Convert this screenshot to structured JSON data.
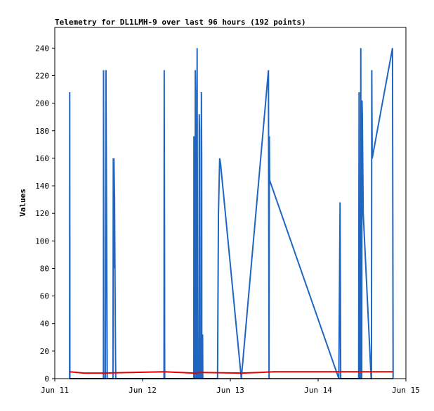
{
  "chart_data": {
    "type": "line",
    "title": "Telemetry for DL1LMH-9 over last 96 hours (192 points)",
    "xlabel": "",
    "ylabel": "Values",
    "ylim": [
      0,
      255
    ],
    "xlim": [
      "2024-06-11T00:00",
      "2024-06-15T00:00"
    ],
    "y_ticks": [
      0,
      20,
      40,
      60,
      80,
      100,
      120,
      140,
      160,
      180,
      200,
      220,
      240
    ],
    "x_ticks": [
      {
        "t": "2024-06-11T00:00",
        "label": "Jun 11"
      },
      {
        "t": "2024-06-12T00:00",
        "label": "Jun 12"
      },
      {
        "t": "2024-06-13T00:00",
        "label": "Jun 13"
      },
      {
        "t": "2024-06-14T00:00",
        "label": "Jun 14"
      },
      {
        "t": "2024-06-15T00:00",
        "label": "Jun 15"
      }
    ],
    "grid": false,
    "colors": {
      "blue": "#1f66c0",
      "red": "#e60000",
      "black": "#000000"
    },
    "series": [
      {
        "color": "#1f66c0",
        "points": [
          [
            "2024-06-11T04:03",
            0
          ],
          [
            "2024-06-11T04:05",
            208
          ],
          [
            "2024-06-11T04:08",
            0
          ],
          [
            "2024-06-11T13:18",
            0
          ],
          [
            "2024-06-11T13:20",
            224
          ],
          [
            "2024-06-11T13:23",
            0
          ],
          [
            "2024-06-11T13:50",
            0
          ],
          [
            "2024-06-11T13:52",
            96
          ],
          [
            "2024-06-11T14:00",
            224
          ],
          [
            "2024-06-11T14:05",
            168
          ],
          [
            "2024-06-11T14:15",
            56
          ],
          [
            "2024-06-11T14:20",
            0
          ],
          [
            "2024-06-11T15:55",
            0
          ],
          [
            "2024-06-11T16:00",
            160
          ],
          [
            "2024-06-11T16:05",
            80
          ],
          [
            "2024-06-11T16:10",
            160
          ],
          [
            "2024-06-11T16:20",
            132
          ],
          [
            "2024-06-11T16:35",
            24
          ],
          [
            "2024-06-11T16:40",
            0
          ],
          [
            "2024-06-12T05:52",
            0
          ],
          [
            "2024-06-12T05:55",
            224
          ],
          [
            "2024-06-12T06:00",
            112
          ],
          [
            "2024-06-12T06:03",
            0
          ],
          [
            "2024-06-12T14:00",
            0
          ],
          [
            "2024-06-12T14:03",
            176
          ],
          [
            "2024-06-12T14:06",
            128
          ],
          [
            "2024-06-12T14:10",
            176
          ],
          [
            "2024-06-12T14:15",
            0
          ],
          [
            "2024-06-12T14:22",
            0
          ],
          [
            "2024-06-12T14:25",
            224
          ],
          [
            "2024-06-12T14:30",
            208
          ],
          [
            "2024-06-12T14:35",
            0
          ],
          [
            "2024-06-12T14:50",
            0
          ],
          [
            "2024-06-12T14:55",
            240
          ],
          [
            "2024-06-12T15:00",
            72
          ],
          [
            "2024-06-12T15:03",
            0
          ],
          [
            "2024-06-12T15:25",
            0
          ],
          [
            "2024-06-12T15:30",
            192
          ],
          [
            "2024-06-12T15:35",
            180
          ],
          [
            "2024-06-12T15:38",
            0
          ],
          [
            "2024-06-12T16:00",
            0
          ],
          [
            "2024-06-12T16:05",
            208
          ],
          [
            "2024-06-12T16:10",
            160
          ],
          [
            "2024-06-12T16:12",
            0
          ],
          [
            "2024-06-12T16:20",
            0
          ],
          [
            "2024-06-12T16:25",
            32
          ],
          [
            "2024-06-12T16:28",
            0
          ],
          [
            "2024-06-12T20:30",
            0
          ],
          [
            "2024-06-12T20:35",
            40
          ],
          [
            "2024-06-12T20:45",
            120
          ],
          [
            "2024-06-12T21:05",
            160
          ],
          [
            "2024-06-12T21:20",
            156
          ],
          [
            "2024-06-13T03:00",
            0
          ],
          [
            "2024-06-13T10:25",
            224
          ],
          [
            "2024-06-13T10:35",
            0
          ],
          [
            "2024-06-13T10:40",
            176
          ],
          [
            "2024-06-13T10:45",
            144
          ],
          [
            "2024-06-14T05:40",
            0
          ],
          [
            "2024-06-14T06:00",
            128
          ],
          [
            "2024-06-14T06:05",
            72
          ],
          [
            "2024-06-14T06:10",
            0
          ],
          [
            "2024-06-14T11:05",
            0
          ],
          [
            "2024-06-14T11:08",
            104
          ],
          [
            "2024-06-14T11:12",
            208
          ],
          [
            "2024-06-14T11:18",
            0
          ],
          [
            "2024-06-14T11:35",
            0
          ],
          [
            "2024-06-14T11:40",
            240
          ],
          [
            "2024-06-14T11:45",
            0
          ],
          [
            "2024-06-14T11:55",
            0
          ],
          [
            "2024-06-14T12:00",
            202
          ],
          [
            "2024-06-14T12:05",
            192
          ],
          [
            "2024-06-14T12:20",
            120
          ],
          [
            "2024-06-14T14:30",
            0
          ],
          [
            "2024-06-14T14:35",
            0
          ],
          [
            "2024-06-14T14:40",
            224
          ],
          [
            "2024-06-14T14:43",
            192
          ],
          [
            "2024-06-14T14:47",
            160
          ],
          [
            "2024-06-14T20:20",
            240
          ],
          [
            "2024-06-14T20:25",
            120
          ],
          [
            "2024-06-14T20:30",
            0
          ]
        ]
      },
      {
        "color": "#e60000",
        "points": [
          [
            "2024-06-11T04:00",
            5
          ],
          [
            "2024-06-11T08:00",
            4
          ],
          [
            "2024-06-11T13:00",
            4
          ],
          [
            "2024-06-12T06:00",
            5
          ],
          [
            "2024-06-12T14:00",
            4
          ],
          [
            "2024-06-12T16:00",
            4.5
          ],
          [
            "2024-06-13T03:00",
            4
          ],
          [
            "2024-06-13T08:00",
            4.5
          ],
          [
            "2024-06-13T12:00",
            5
          ],
          [
            "2024-06-14T20:30",
            5
          ]
        ]
      },
      {
        "color": "#000000",
        "points": [
          [
            "2024-06-11T04:00",
            0
          ],
          [
            "2024-06-14T20:30",
            0
          ]
        ]
      }
    ]
  }
}
